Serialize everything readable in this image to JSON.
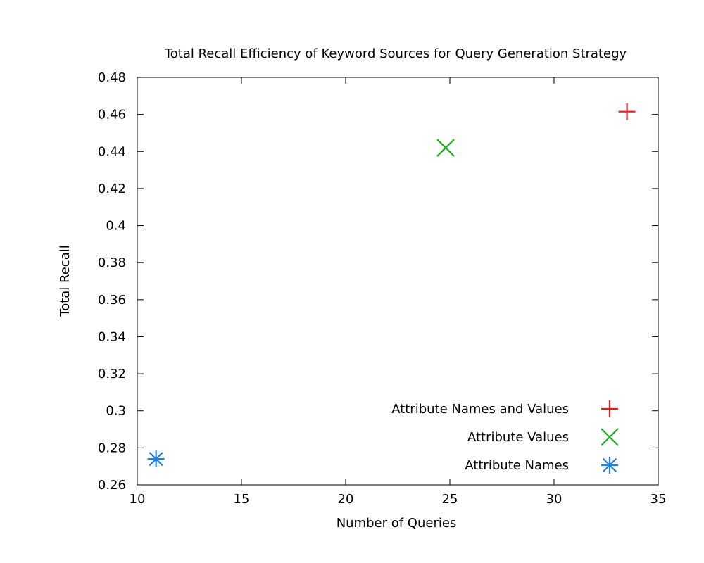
{
  "chart_data": {
    "type": "scatter",
    "title": "Total Recall Efficiency of Keyword Sources for Query Generation Strategy",
    "xlabel": "Number of Queries",
    "ylabel": "Total Recall",
    "xlim": [
      10,
      35
    ],
    "ylim": [
      0.26,
      0.48
    ],
    "x_ticks": [
      10,
      15,
      20,
      25,
      30,
      35
    ],
    "y_ticks": [
      0.26,
      0.28,
      0.3,
      0.32,
      0.34,
      0.36,
      0.38,
      0.4,
      0.42,
      0.44,
      0.46,
      0.48
    ],
    "x_tick_labels": [
      "10",
      "15",
      "20",
      "25",
      "30",
      "35"
    ],
    "y_tick_labels": [
      "0.26",
      "0.28",
      "0.3",
      "0.32",
      "0.34",
      "0.36",
      "0.38",
      "0.4",
      "0.42",
      "0.44",
      "0.46",
      "0.48"
    ],
    "grid": false,
    "legend_position": "bottom-right",
    "series": [
      {
        "name": "Attribute Names and Values",
        "marker": "plus",
        "color": "#e41a1c",
        "points": [
          {
            "x": 33.5,
            "y": 0.4615
          }
        ]
      },
      {
        "name": "Attribute Values",
        "marker": "cross",
        "color": "#1aaa1a",
        "points": [
          {
            "x": 24.8,
            "y": 0.442
          }
        ]
      },
      {
        "name": "Attribute Names",
        "marker": "star",
        "color": "#1e7fe0",
        "points": [
          {
            "x": 10.9,
            "y": 0.274
          }
        ]
      }
    ]
  }
}
